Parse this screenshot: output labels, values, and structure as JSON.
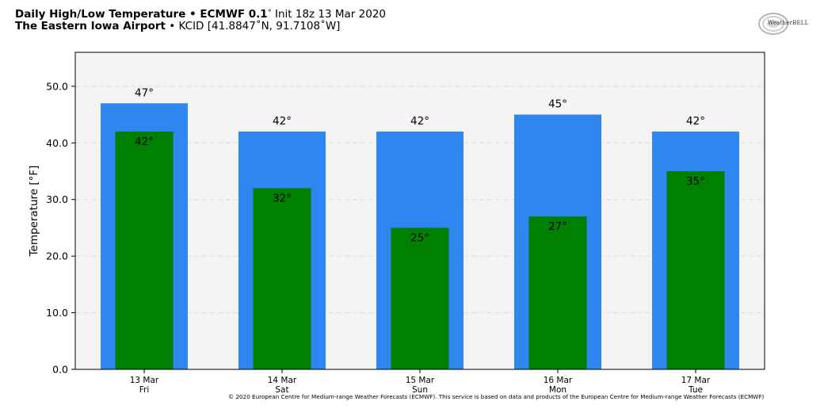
{
  "header": {
    "line1_bold": "Daily High/Low Temperature • ECMWF 0.1",
    "line1_degree": "°",
    "line1_rest": " Init 18z 13 Mar 2020",
    "line2_bold": "The Eastern Iowa Airport",
    "line2_rest": " • KCID [41.8847˚N, 91.7108˚W]"
  },
  "logo": {
    "text": "WeatherBELL",
    "icon": "swirl-logo-icon"
  },
  "copyright": "© 2020 European Centre for Medium-range Weather Forecasts (ECMWF). This service is based on data and products of the European Centre for Medium-range Weather Forecasts (ECMWF)",
  "chart_data": {
    "type": "bar",
    "categories": [
      "13 Mar",
      "14 Mar",
      "15 Mar",
      "16 Mar",
      "17 Mar"
    ],
    "category_days": [
      "Fri",
      "Sat",
      "Sun",
      "Mon",
      "Tue"
    ],
    "ylabel": "Temperature [°F]",
    "ylim": [
      0,
      56
    ],
    "yticks": [
      0,
      10,
      20,
      30,
      40,
      50
    ],
    "ytick_labels": [
      "0.0",
      "10.0",
      "20.0",
      "30.0",
      "40.0",
      "50.0"
    ],
    "grid": true,
    "series": [
      {
        "values": [
          47,
          42,
          42,
          45,
          42
        ],
        "color": "#2e86f0",
        "labels": [
          "47°",
          "42°",
          "42°",
          "45°",
          "42°"
        ]
      },
      {
        "values": [
          42,
          32,
          25,
          27,
          35
        ],
        "color": "#008000",
        "labels": [
          "42°",
          "32°",
          "25°",
          "27°",
          "35°"
        ]
      }
    ],
    "plot_background": "#f4f4f4"
  }
}
